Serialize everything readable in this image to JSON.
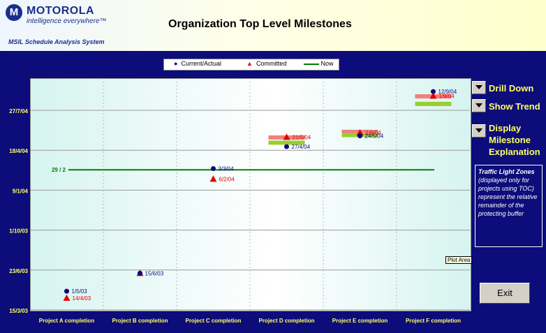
{
  "brand": {
    "name": "MOTOROLA",
    "tagline": "intelligence everywhere™",
    "mark": "M"
  },
  "title": "Organization Top Level Milestones",
  "system": "MSIL Schedule Analysis System",
  "legend": {
    "current": "Current/Actual",
    "committed": "Committed",
    "now": "Now"
  },
  "side_buttons": {
    "drill_down": "Drill Down",
    "show_trend": "Show Trend",
    "display_milestone": "Display Milestone Explanation"
  },
  "traffic_light": {
    "heading": "Traffic Light Zones",
    "body": "(displayed only for projects using TOC) represent the relative remainder of the protecting buffer"
  },
  "tooltip": "Plot Area",
  "exit_label": "Exit",
  "colors": {
    "current": "#0a0a7a",
    "committed": "#e00000",
    "now": "#008000",
    "buffer_red": "#f08080",
    "buffer_green": "#9acd32"
  },
  "chart_data": {
    "type": "scatter",
    "categories": [
      "Project A completion",
      "Project B completion",
      "Project C completion",
      "Project D completion",
      "Project E completion",
      "Project F completion"
    ],
    "y_ticks": [
      "15/3/03",
      "23/6/03",
      "1/10/03",
      "9/1/04",
      "18/4/04",
      "27/7/04"
    ],
    "y_axis_dates": [
      "2003-03-15",
      "2003-06-23",
      "2003-10-01",
      "2004-01-09",
      "2004-04-18",
      "2004-07-27"
    ],
    "ylim": [
      "2003-03-15",
      "2004-09-30"
    ],
    "now": {
      "label": "29 / 2",
      "date": "2004-02-29"
    },
    "series": [
      {
        "name": "Current/Actual",
        "points": [
          {
            "label": "1/5/03",
            "date": "2003-05-01"
          },
          {
            "label": "15/6/03",
            "date": "2003-06-15"
          },
          {
            "label": "3/3/04",
            "date": "2004-03-03"
          },
          {
            "label": "27/4/04",
            "date": "2004-04-27"
          },
          {
            "label": "24/5/04",
            "date": "2004-05-24"
          },
          {
            "label": "12/9/04",
            "date": "2004-09-12"
          }
        ]
      },
      {
        "name": "Committed",
        "points": [
          {
            "label": "14/4/03",
            "date": "2003-04-14"
          },
          {
            "label": "",
            "date": "2003-06-15"
          },
          {
            "label": "6/2/04",
            "date": "2004-02-06"
          },
          {
            "label": "21/5/04",
            "date": "2004-05-21"
          },
          {
            "label": "1/6/04",
            "date": "2004-06-01"
          },
          {
            "label": "1/9/04",
            "date": "2004-09-01"
          }
        ]
      }
    ],
    "buffer_zones": [
      {
        "category": "Project D completion",
        "red_date": "2004-05-20",
        "green_date": "2004-05-07"
      },
      {
        "category": "Project E completion",
        "red_date": "2004-06-03",
        "green_date": "2004-05-26"
      },
      {
        "category": "Project F completion",
        "red_date": "2004-08-31",
        "green_date": "2004-08-12"
      }
    ],
    "grid": true
  }
}
